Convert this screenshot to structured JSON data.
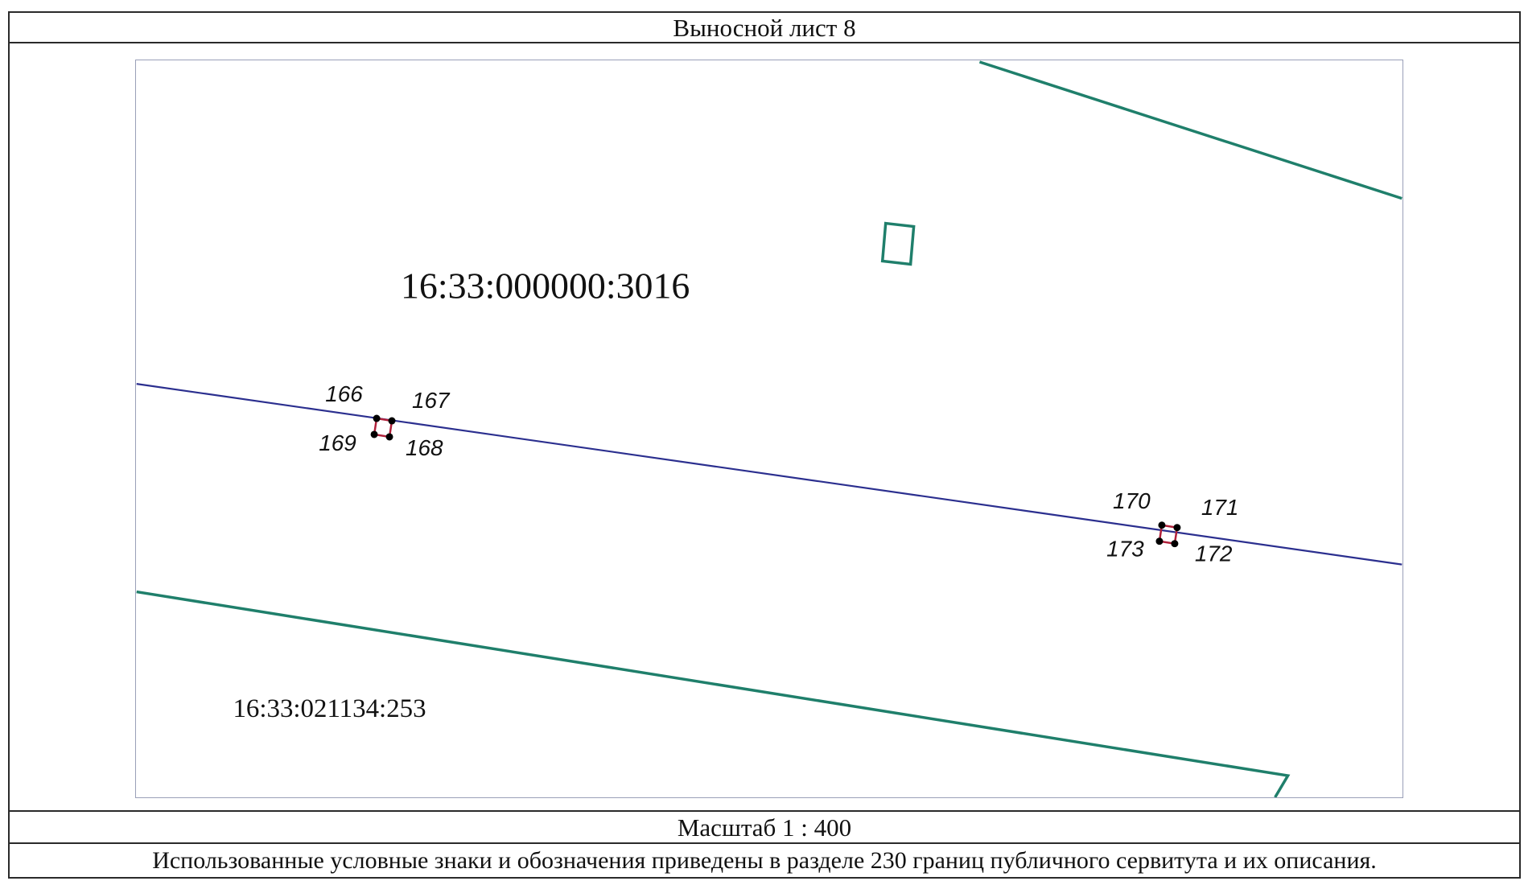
{
  "sheet": {
    "title": "Выносной лист 8",
    "scale_label": "Масштаб 1 : 400",
    "note": "Использованные условные знаки и обозначения приведены в разделе 230 границ публичного сервитута и их описания."
  },
  "map": {
    "parcels": [
      {
        "id": "parcel-main",
        "label": "16:33:000000:3016"
      },
      {
        "id": "parcel-south",
        "label": "16:33:021134:253"
      }
    ],
    "points": {
      "group_a": [
        "166",
        "167",
        "168",
        "169"
      ],
      "group_b": [
        "170",
        "171",
        "172",
        "173"
      ]
    },
    "colors": {
      "parcel_boundary": "#1f7f6b",
      "servitude_line": "#2b2f8f",
      "servitude_polygon": "#b0203a",
      "point_marker": "#000000"
    }
  }
}
